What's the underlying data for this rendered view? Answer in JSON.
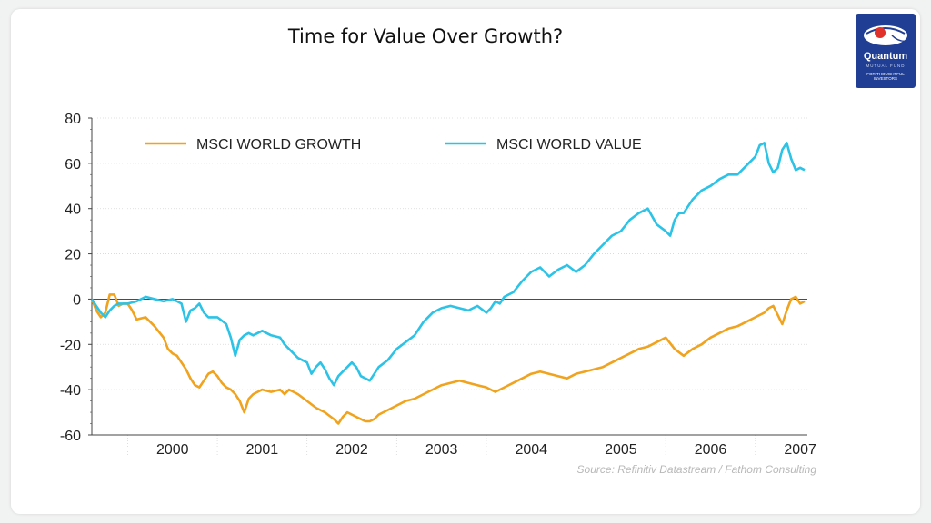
{
  "title": "Time for Value Over Growth?",
  "logo": {
    "name": "Quantum",
    "subtitle": "MUTUAL FUND",
    "tagline": "FOR THOUGHTFUL INVESTORS",
    "color": "#1f3e94"
  },
  "source": "Source: Refinitiv Datastream / Fathom Consulting",
  "chart_data": {
    "type": "line",
    "title": "",
    "xlabel": "",
    "ylabel": "",
    "xlim": [
      1999.6,
      2007.58
    ],
    "ylim": [
      -60,
      80
    ],
    "yticks": [
      80,
      60,
      40,
      20,
      0,
      -20,
      -40,
      -60
    ],
    "ytick_labels": [
      "80",
      "60",
      "40",
      "20",
      "0",
      "-20",
      "-40",
      "-60"
    ],
    "xtick_labels": [
      "2000",
      "2001",
      "2002",
      "2003",
      "2004",
      "2005",
      "2006",
      "2007"
    ],
    "grid": true,
    "legend_position": "top-left",
    "series": [
      {
        "name": "MSCI WORLD GROWTH",
        "color": "#f0a31e",
        "x": [
          1999.6,
          1999.65,
          1999.7,
          1999.75,
          1999.8,
          1999.85,
          1999.9,
          1999.95,
          2000.0,
          2000.05,
          2000.1,
          2000.2,
          2000.3,
          2000.4,
          2000.45,
          2000.5,
          2000.55,
          2000.6,
          2000.65,
          2000.7,
          2000.75,
          2000.8,
          2000.85,
          2000.9,
          2000.95,
          2001.0,
          2001.05,
          2001.1,
          2001.15,
          2001.2,
          2001.25,
          2001.3,
          2001.35,
          2001.4,
          2001.45,
          2001.5,
          2001.6,
          2001.7,
          2001.75,
          2001.8,
          2001.9,
          2002.0,
          2002.1,
          2002.2,
          2002.3,
          2002.35,
          2002.4,
          2002.45,
          2002.5,
          2002.55,
          2002.6,
          2002.65,
          2002.7,
          2002.75,
          2002.8,
          2002.9,
          2003.0,
          2003.1,
          2003.2,
          2003.3,
          2003.4,
          2003.5,
          2003.6,
          2003.7,
          2003.8,
          2003.9,
          2004.0,
          2004.1,
          2004.2,
          2004.3,
          2004.4,
          2004.5,
          2004.6,
          2004.7,
          2004.8,
          2004.9,
          2005.0,
          2005.1,
          2005.2,
          2005.3,
          2005.4,
          2005.5,
          2005.6,
          2005.7,
          2005.8,
          2005.9,
          2006.0,
          2006.1,
          2006.2,
          2006.3,
          2006.4,
          2006.5,
          2006.6,
          2006.7,
          2006.8,
          2006.9,
          2007.0,
          2007.1,
          2007.15,
          2007.2,
          2007.25,
          2007.3,
          2007.35,
          2007.4,
          2007.45,
          2007.5,
          2007.55
        ],
        "y": [
          0,
          -5,
          -8,
          -6,
          2,
          2,
          -3,
          -2,
          -2,
          -5,
          -9,
          -8,
          -12,
          -17,
          -22,
          -24,
          -25,
          -28,
          -31,
          -35,
          -38,
          -39,
          -36,
          -33,
          -32,
          -34,
          -37,
          -39,
          -40,
          -42,
          -45,
          -50,
          -44,
          -42,
          -41,
          -40,
          -41,
          -40,
          -42,
          -40,
          -42,
          -45,
          -48,
          -50,
          -53,
          -55,
          -52,
          -50,
          -51,
          -52,
          -53,
          -54,
          -54,
          -53,
          -51,
          -49,
          -47,
          -45,
          -44,
          -42,
          -40,
          -38,
          -37,
          -36,
          -37,
          -38,
          -39,
          -41,
          -39,
          -37,
          -35,
          -33,
          -32,
          -33,
          -34,
          -35,
          -33,
          -32,
          -31,
          -30,
          -28,
          -26,
          -24,
          -22,
          -21,
          -19,
          -17,
          -22,
          -25,
          -22,
          -20,
          -17,
          -15,
          -13,
          -12,
          -10,
          -8,
          -6,
          -4,
          -3,
          -7,
          -11,
          -5,
          0,
          1,
          -2,
          -1
        ]
      },
      {
        "name": "MSCI WORLD VALUE",
        "color": "#2cc3e6",
        "x": [
          1999.6,
          1999.65,
          1999.7,
          1999.75,
          1999.8,
          1999.85,
          1999.9,
          2000.0,
          2000.1,
          2000.2,
          2000.3,
          2000.4,
          2000.5,
          2000.6,
          2000.65,
          2000.7,
          2000.75,
          2000.8,
          2000.85,
          2000.9,
          2001.0,
          2001.1,
          2001.15,
          2001.2,
          2001.25,
          2001.3,
          2001.35,
          2001.4,
          2001.5,
          2001.6,
          2001.7,
          2001.75,
          2001.8,
          2001.85,
          2001.9,
          2002.0,
          2002.05,
          2002.1,
          2002.15,
          2002.2,
          2002.25,
          2002.3,
          2002.35,
          2002.4,
          2002.45,
          2002.5,
          2002.55,
          2002.6,
          2002.65,
          2002.7,
          2002.75,
          2002.8,
          2002.9,
          2003.0,
          2003.1,
          2003.2,
          2003.3,
          2003.4,
          2003.5,
          2003.6,
          2003.7,
          2003.8,
          2003.9,
          2004.0,
          2004.05,
          2004.1,
          2004.15,
          2004.2,
          2004.25,
          2004.3,
          2004.4,
          2004.5,
          2004.6,
          2004.7,
          2004.8,
          2004.9,
          2005.0,
          2005.1,
          2005.2,
          2005.3,
          2005.4,
          2005.5,
          2005.6,
          2005.7,
          2005.8,
          2005.9,
          2006.0,
          2006.05,
          2006.1,
          2006.15,
          2006.2,
          2006.3,
          2006.4,
          2006.5,
          2006.6,
          2006.7,
          2006.8,
          2006.9,
          2007.0,
          2007.05,
          2007.1,
          2007.15,
          2007.2,
          2007.25,
          2007.3,
          2007.35,
          2007.4,
          2007.45,
          2007.5,
          2007.55
        ],
        "y": [
          0,
          -3,
          -6,
          -8,
          -5,
          -3,
          -2,
          -2,
          -1,
          1,
          0,
          -1,
          0,
          -2,
          -10,
          -5,
          -4,
          -2,
          -6,
          -8,
          -8,
          -11,
          -17,
          -25,
          -18,
          -16,
          -15,
          -16,
          -14,
          -16,
          -17,
          -20,
          -22,
          -24,
          -26,
          -28,
          -33,
          -30,
          -28,
          -31,
          -35,
          -38,
          -34,
          -32,
          -30,
          -28,
          -30,
          -34,
          -35,
          -36,
          -33,
          -30,
          -27,
          -22,
          -19,
          -16,
          -10,
          -6,
          -4,
          -3,
          -4,
          -5,
          -3,
          -6,
          -4,
          -1,
          -2,
          1,
          2,
          3,
          8,
          12,
          14,
          10,
          13,
          15,
          12,
          15,
          20,
          24,
          28,
          30,
          35,
          38,
          40,
          33,
          30,
          28,
          35,
          38,
          38,
          44,
          48,
          50,
          53,
          55,
          55,
          59,
          63,
          68,
          69,
          60,
          56,
          58,
          66,
          69,
          62,
          57,
          58,
          57
        ]
      }
    ]
  }
}
